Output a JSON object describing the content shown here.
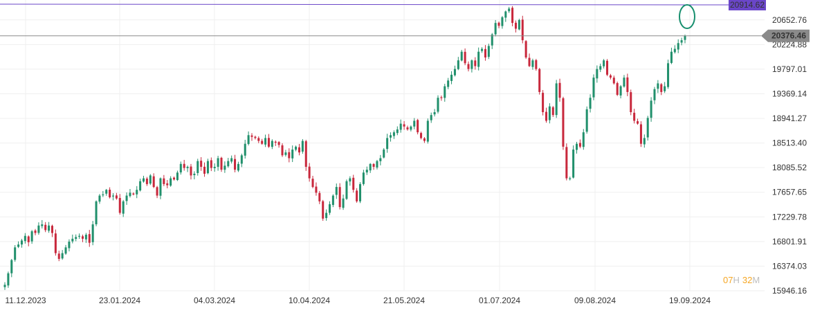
{
  "chart_data": {
    "type": "candlestick",
    "title": "",
    "xlabel": "",
    "ylabel": "",
    "ylim": [
      15880,
      21020
    ],
    "grid": true,
    "up_color": "#21906c",
    "down_color": "#c8283c",
    "x_tick_labels": [
      "11.12.2023",
      "23.01.2024",
      "04.03.2024",
      "10.04.2024",
      "21.05.2024",
      "01.07.2024",
      "09.08.2024",
      "19.09.2024"
    ],
    "y_tick_labels": [
      20652.76,
      20224.88,
      19797.01,
      19369.14,
      18941.27,
      18513.4,
      18085.52,
      17657.65,
      17229.78,
      16801.91,
      16374.03,
      15946.16
    ],
    "high_line": {
      "value": 20914.62,
      "label": "20914.62",
      "color": "#6a46c8"
    },
    "last_price": {
      "value": 20376.46,
      "label": "20376.46",
      "color": "#8a8a8a"
    },
    "timer": {
      "hours": "07",
      "hour_unit": "H",
      "minutes": "32",
      "minute_unit": "M",
      "color": "#f5a623"
    },
    "annotation": {
      "type": "ellipse",
      "color": "#178f6e"
    },
    "closes": [
      16050,
      16250,
      16480,
      16700,
      16750,
      16820,
      16900,
      16790,
      16980,
      16950,
      17080,
      17100,
      17000,
      17080,
      16950,
      16600,
      16500,
      16600,
      16700,
      16800,
      16850,
      16880,
      16900,
      16850,
      16920,
      16780,
      17100,
      17500,
      17600,
      17620,
      17700,
      17570,
      17600,
      17550,
      17300,
      17500,
      17600,
      17650,
      17620,
      17700,
      17850,
      17900,
      17800,
      17950,
      17750,
      17600,
      17900,
      17800,
      17780,
      17900,
      17880,
      18000,
      18150,
      18080,
      18100,
      17950,
      17980,
      18200,
      18100,
      17980,
      18200,
      18080,
      18100,
      18250,
      18050,
      18120,
      18200,
      18250,
      18050,
      18150,
      18300,
      18500,
      18650,
      18620,
      18600,
      18550,
      18500,
      18600,
      18450,
      18550,
      18520,
      18480,
      18300,
      18350,
      18250,
      18400,
      18450,
      18350,
      18550,
      18100,
      17900,
      17750,
      17650,
      17500,
      17200,
      17300,
      17450,
      17600,
      17750,
      17400,
      17550,
      17850,
      17900,
      17700,
      17500,
      17800,
      18000,
      18050,
      18150,
      18100,
      18200,
      18250,
      18400,
      18600,
      18650,
      18700,
      18750,
      18850,
      18800,
      18750,
      18800,
      18900,
      18700,
      18600,
      18550,
      18900,
      19000,
      19050,
      19300,
      19300,
      19500,
      19600,
      19700,
      19800,
      19950,
      20100,
      19900,
      19800,
      19950,
      19850,
      20100,
      20150,
      20000,
      20200,
      20400,
      20600,
      20550,
      20700,
      20800,
      20850,
      20600,
      20500,
      20650,
      20300,
      20000,
      19850,
      19950,
      19800,
      19400,
      19050,
      18900,
      19150,
      19000,
      19550,
      19300,
      18450,
      17900,
      17900,
      18400,
      18500,
      18450,
      18700,
      19100,
      19300,
      19650,
      19800,
      19850,
      19950,
      19700,
      19650,
      19550,
      19350,
      19500,
      19650,
      19400,
      19050,
      18900,
      18850,
      18500,
      18600,
      18950,
      19250,
      19450,
      19550,
      19400,
      19500,
      19900,
      20100,
      20150,
      20250,
      20300,
      20376
    ]
  }
}
